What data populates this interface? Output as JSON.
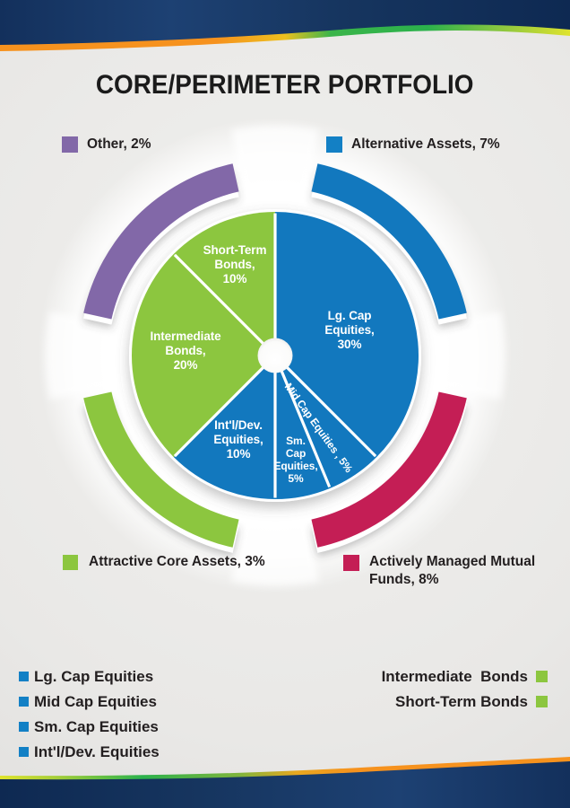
{
  "page": {
    "title": "CORE/PERIMETER PORTFOLIO"
  },
  "callouts": {
    "other": {
      "label": "Other, 2%",
      "color": "#8268A8"
    },
    "alternative": {
      "label": "Alternative Assets, 7%",
      "color": "#1380C5"
    },
    "attractive": {
      "label": "Attractive Core Assets, 3%",
      "color": "#8CC63F"
    },
    "active": {
      "label": "Actively Managed Mutual Funds, 8%",
      "color": "#C41E55"
    }
  },
  "chart_data": {
    "type": "pie",
    "title": "CORE/PERIMETER PORTFOLIO",
    "units": "percent",
    "core_total_shown": 80,
    "core_slices": [
      {
        "name": "Lg. Cap Equities",
        "value": 30,
        "color": "#1278BE",
        "label": "Lg. Cap\nEquities,\n30%"
      },
      {
        "name": "Mid Cap Equities",
        "value": 5,
        "color": "#1278BE",
        "label": "Mid Cap Equities , 5%"
      },
      {
        "name": "Sm. Cap Equities",
        "value": 5,
        "color": "#1278BE",
        "label": "Sm.\nCap\nEquities,\n5%"
      },
      {
        "name": "Int'l/Dev. Equities",
        "value": 10,
        "color": "#1278BE",
        "label": "Int'l/Dev.\nEquities,\n10%"
      },
      {
        "name": "Intermediate Bonds",
        "value": 20,
        "color": "#8CC63F",
        "label": "Intermediate\nBonds,\n20%"
      },
      {
        "name": "Short-Term Bonds",
        "value": 10,
        "color": "#8CC63F",
        "label": "Short-Term\nBonds,\n10%"
      }
    ],
    "perimeter_arcs": [
      {
        "name": "Alternative Assets",
        "value": 7,
        "color": "#1278BE",
        "start": 12.5,
        "end": 77.5
      },
      {
        "name": "Actively Managed Mutual Funds",
        "value": 8,
        "color": "#C41E55",
        "start": 102.5,
        "end": 167.5
      },
      {
        "name": "Attractive Core Assets",
        "value": 3,
        "color": "#8CC63F",
        "start": 192.5,
        "end": 257.5
      },
      {
        "name": "Other",
        "value": 2,
        "color": "#8268A8",
        "start": 282.5,
        "end": 347.5
      }
    ],
    "legend_position": "bottom",
    "grid": false
  },
  "legend": {
    "left": [
      {
        "label": "Lg. Cap Equities",
        "color": "#1380C5"
      },
      {
        "label": "Mid Cap Equities",
        "color": "#1380C5"
      },
      {
        "label": "Sm. Cap Equities",
        "color": "#1380C5"
      },
      {
        "label": "Int'l/Dev. Equities",
        "color": "#1380C5"
      }
    ],
    "right": [
      {
        "label": "Intermediate  Bonds",
        "color": "#8CC63F"
      },
      {
        "label": "Short-Term Bonds",
        "color": "#8CC63F"
      }
    ]
  }
}
